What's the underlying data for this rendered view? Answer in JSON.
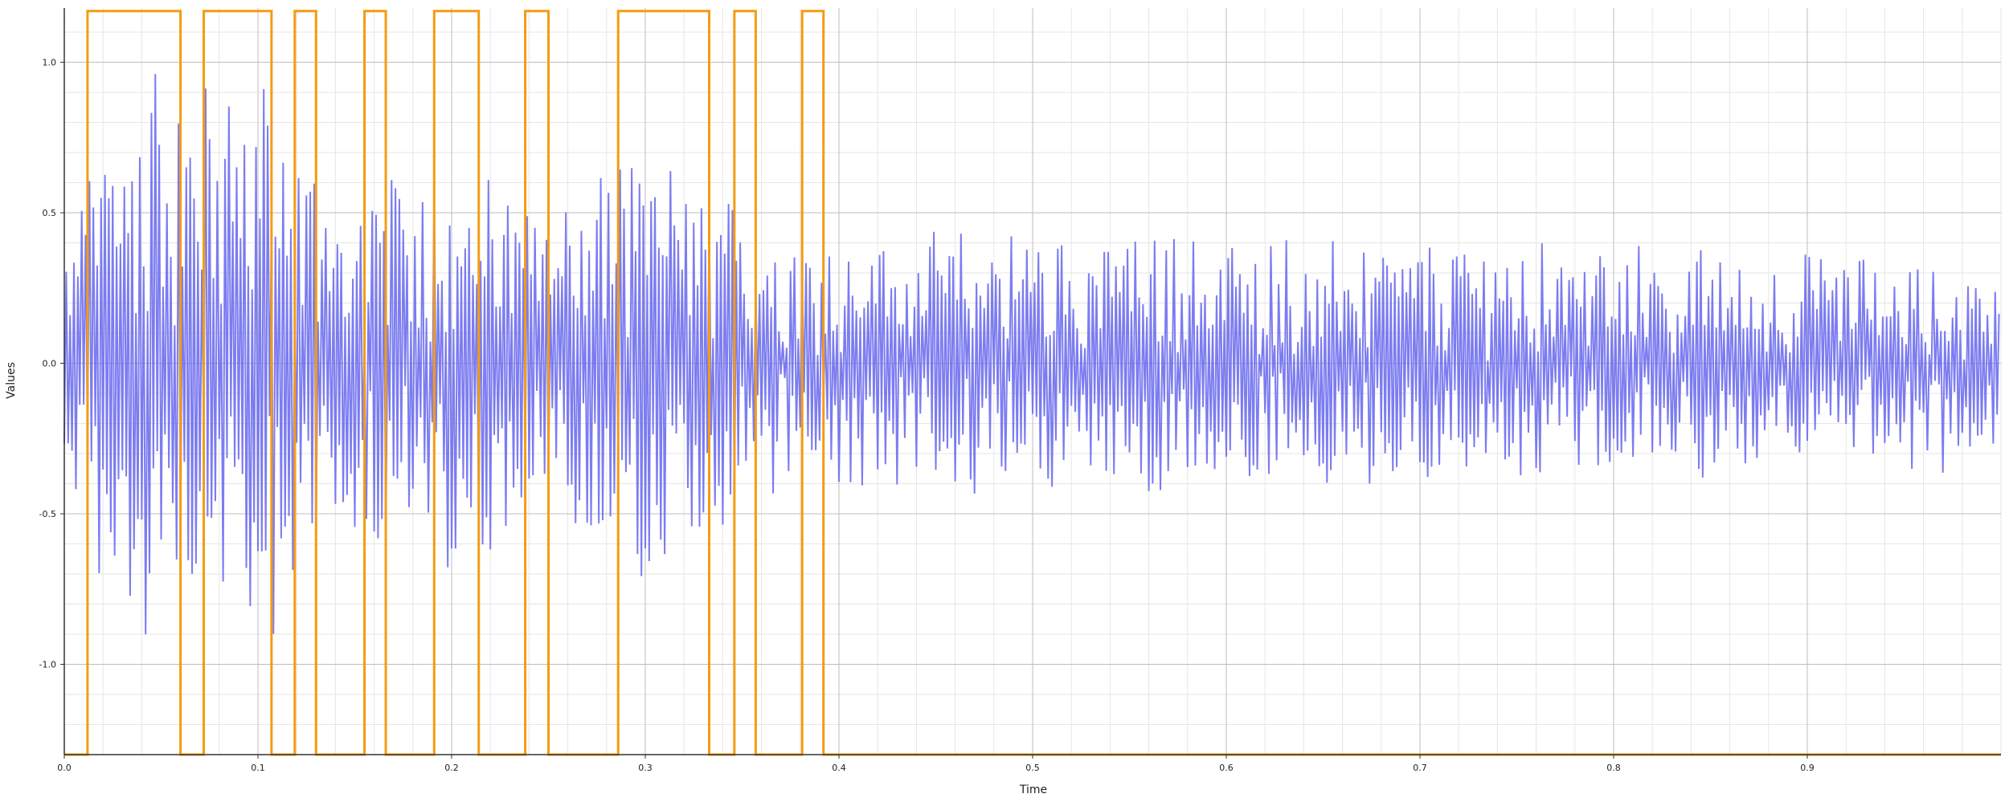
{
  "chart_data": {
    "type": "line",
    "title": "",
    "xlabel": "Time",
    "ylabel": "Values",
    "xlim": [
      0.0,
      1.0
    ],
    "ylim": [
      -1.3,
      1.18
    ],
    "x_ticks": [
      0.0,
      0.1,
      0.2,
      0.3,
      0.4,
      0.5,
      0.6,
      0.7,
      0.8,
      0.9
    ],
    "x_tick_labels": [
      "0.0",
      "0.1",
      "0.2",
      "0.3",
      "0.4",
      "0.5",
      "0.6",
      "0.7",
      "0.8",
      "0.9"
    ],
    "y_ticks": [
      -1.0,
      -0.5,
      0.0,
      0.5,
      1.0
    ],
    "y_tick_labels": [
      "-1.0",
      "-0.5",
      "0.0",
      "0.5",
      "1.0"
    ],
    "grid": true,
    "minor_grid": true,
    "series": [
      {
        "color": "#6e6ef0",
        "sample_count": 1000,
        "envelope_breakpoints": [
          {
            "time": 0.0,
            "amplitude": 0.35
          },
          {
            "time": 0.02,
            "amplitude": 0.75
          },
          {
            "time": 0.04,
            "amplitude": 1.0
          },
          {
            "time": 0.06,
            "amplitude": 0.9
          },
          {
            "time": 0.1,
            "amplitude": 0.95
          },
          {
            "time": 0.14,
            "amplitude": 0.55
          },
          {
            "time": 0.2,
            "amplitude": 0.7
          },
          {
            "time": 0.24,
            "amplitude": 0.5
          },
          {
            "time": 0.3,
            "amplitude": 0.7
          },
          {
            "time": 0.36,
            "amplitude": 0.45
          },
          {
            "time": 0.4,
            "amplitude": 0.4
          },
          {
            "time": 0.5,
            "amplitude": 0.42
          },
          {
            "time": 0.7,
            "amplitude": 0.38
          },
          {
            "time": 1.0,
            "amplitude": 0.32
          }
        ],
        "y_min": -1.3,
        "y_max": 1.18
      },
      {
        "color": "#f39c12",
        "type": "step",
        "low": -1.3,
        "high": 1.17,
        "segments": [
          [
            0.012,
            0.06
          ],
          [
            0.072,
            0.107
          ],
          [
            0.119,
            0.13
          ],
          [
            0.155,
            0.166
          ],
          [
            0.191,
            0.214
          ],
          [
            0.238,
            0.25
          ],
          [
            0.286,
            0.333
          ],
          [
            0.346,
            0.357
          ],
          [
            0.381,
            0.392
          ]
        ]
      }
    ]
  },
  "colors": {
    "grid_major": "#bdbdbd",
    "grid_minor": "#e6e6e6",
    "axis": "#333333"
  }
}
